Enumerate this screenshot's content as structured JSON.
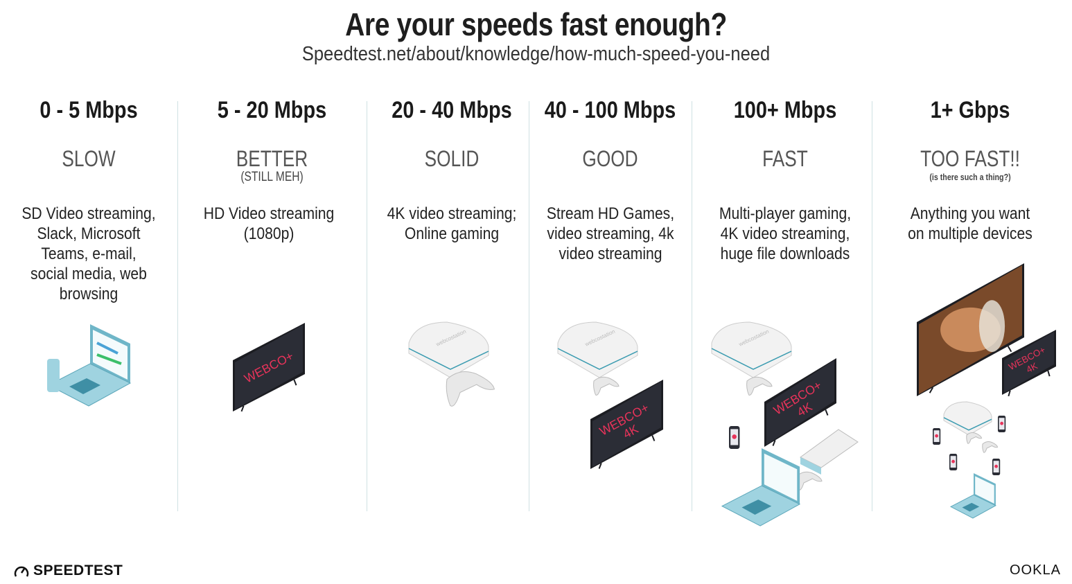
{
  "header": {
    "title": "Are your speeds fast enough?",
    "subtitle": "Speedtest.net/about/knowledge/how-much-speed-you-need"
  },
  "columns": [
    {
      "speed": "0 - 5 Mbps",
      "label": "SLOW",
      "note": "",
      "description": "SD Video streaming, Slack, Microsoft Teams, e-mail, social media, web browsing"
    },
    {
      "speed": "5 - 20 Mbps",
      "label": "BETTER",
      "note": "(STILL MEH)",
      "description": "HD Video streaming (1080p)"
    },
    {
      "speed": "20 - 40 Mbps",
      "label": "SOLID",
      "note": "",
      "description": "4K video streaming; Online gaming"
    },
    {
      "speed": "40 - 100 Mbps",
      "label": "GOOD",
      "note": "",
      "description": "Stream HD Games, video streaming, 4k video streaming"
    },
    {
      "speed": "100+ Mbps",
      "label": "FAST",
      "note": "",
      "description": "Multi-player gaming, 4K video streaming, huge file downloads"
    },
    {
      "speed": "1+ Gbps",
      "label": "TOO FAST!!",
      "note": "(is there such a thing?)",
      "description": "Anything you want on multiple devices"
    }
  ],
  "tv_brand": "WEBCO+",
  "tv_4k": "4K",
  "console_brand": "webcostation",
  "footer": {
    "left_logo": "SPEEDTEST",
    "right_logo": "OOKLA"
  },
  "colors": {
    "tv_screen": "#2b2d36",
    "tv_text": "#e8335a",
    "device_blue": "#9fd3e0",
    "divider": "#cfe1e3"
  }
}
